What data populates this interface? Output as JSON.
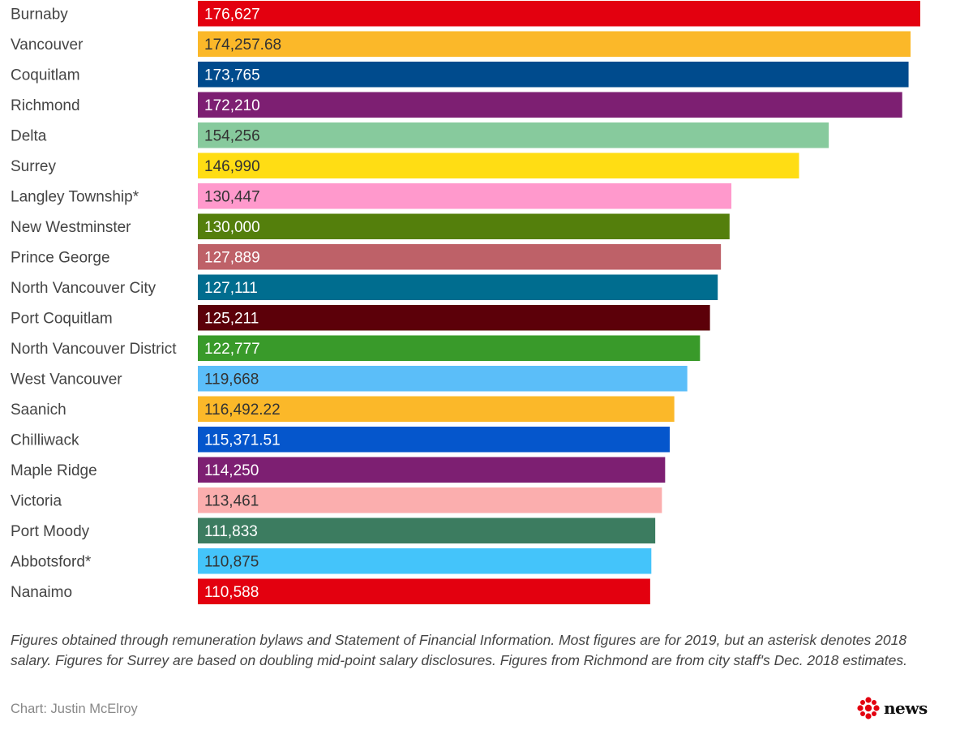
{
  "chart_data": {
    "type": "bar",
    "orientation": "horizontal",
    "categories": [
      "Burnaby",
      "Vancouver",
      "Coquitlam",
      "Richmond",
      "Delta",
      "Surrey",
      "Langley Township*",
      "New Westminster",
      "Prince George",
      "North Vancouver City",
      "Port Coquitlam",
      "North Vancouver District",
      "West Vancouver",
      "Saanich",
      "Chilliwack",
      "Maple Ridge",
      "Victoria",
      "Port Moody",
      "Abbotsford*",
      "Nanaimo"
    ],
    "values": [
      176627,
      174257.68,
      173765,
      172210,
      154256,
      146990,
      130447,
      130000,
      127889,
      127111,
      125211,
      122777,
      119668,
      116492.22,
      115371.51,
      114250,
      113461,
      111833,
      110875,
      110588
    ],
    "value_labels": [
      "176,627",
      "174,257.68",
      "173,765",
      "172,210",
      "154,256",
      "146,990",
      "130,447",
      "130,000",
      "127,889",
      "127,111",
      "125,211",
      "122,777",
      "119,668",
      "116,492.22",
      "115,371.51",
      "114,250",
      "113,461",
      "111,833",
      "110,875",
      "110,588"
    ],
    "colors": [
      "#e3000f",
      "#fbb829",
      "#004b8d",
      "#7d1f72",
      "#87ca9d",
      "#ffdd14",
      "#ff99cc",
      "#547f0c",
      "#be6168",
      "#006d8f",
      "#5c0009",
      "#399a2a",
      "#5bbef9",
      "#fbb829",
      "#0556cc",
      "#7d1f72",
      "#fbaeae",
      "#3c7c60",
      "#44c4fa",
      "#e3000f"
    ],
    "label_colors": [
      "#ffffff",
      "#333333",
      "#ffffff",
      "#ffffff",
      "#333333",
      "#333333",
      "#333333",
      "#ffffff",
      "#ffffff",
      "#ffffff",
      "#ffffff",
      "#ffffff",
      "#333333",
      "#333333",
      "#ffffff",
      "#ffffff",
      "#333333",
      "#ffffff",
      "#333333",
      "#ffffff"
    ],
    "xlim": [
      0,
      176627
    ],
    "grid": false,
    "legend": "none"
  },
  "footnote": "Figures obtained through remuneration bylaws and Statement of Financial Information. Most figures are for 2019, but an asterisk denotes 2018 salary. Figures for Surrey are based on doubling mid-point salary disclosures. Figures from Richmond are from city staff's Dec. 2018 estimates.",
  "credit": "Chart: Justin McElroy",
  "brand": {
    "wordmark": "news",
    "logo_icon": "cbc-gem-icon",
    "logo_color": "#e3000f"
  }
}
